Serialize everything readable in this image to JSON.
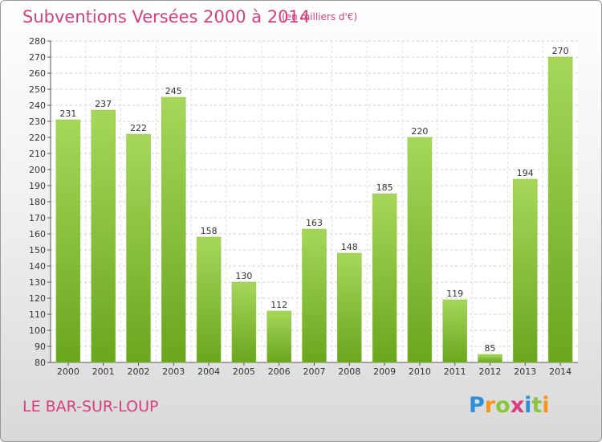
{
  "header": {
    "title": "Subventions Versées 2000 à 2014",
    "subtitle": "(en milliers d'€)"
  },
  "footer": {
    "commune": "LE BAR-SUR-LOUP",
    "logo": "Proxiti"
  },
  "colors": {
    "accent": "#d63f7f",
    "bar_light": "#a6d75a",
    "bar_dark": "#6aa61e"
  },
  "chart_data": {
    "type": "bar",
    "title": "Subventions Versées 2000 à 2014",
    "subtitle": "(en milliers d'€)",
    "xlabel": "",
    "ylabel": "",
    "categories": [
      "2000",
      "2001",
      "2002",
      "2003",
      "2004",
      "2005",
      "2006",
      "2007",
      "2008",
      "2009",
      "2010",
      "2011",
      "2012",
      "2013",
      "2014"
    ],
    "values": [
      231,
      237,
      222,
      245,
      158,
      130,
      112,
      163,
      148,
      185,
      220,
      119,
      85,
      194,
      270
    ],
    "ylim": [
      80,
      280
    ],
    "ytick_step": 10,
    "grid": true,
    "legend": "none"
  }
}
